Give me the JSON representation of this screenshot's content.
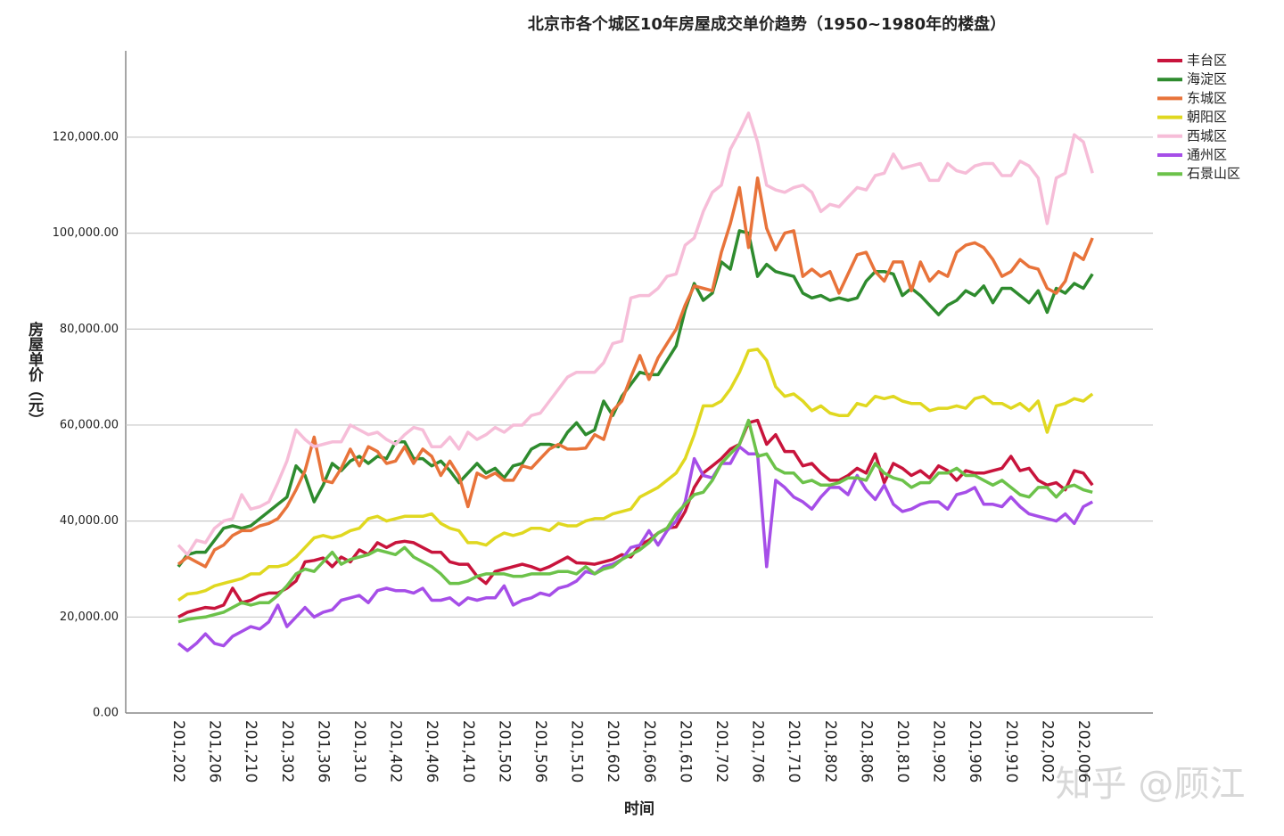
{
  "chart_data": {
    "type": "line",
    "title": "北京市各个城区10年房屋成交单价趋势（1950~1980年的楼盘）",
    "x_label": "时间",
    "y_label": "房屋单价（元）",
    "watermark": "知乎 @顾江",
    "grid": true,
    "legend": "top-right",
    "ylim": [
      0,
      138000
    ],
    "yticks": [
      {
        "value": 0,
        "label": "0.00"
      },
      {
        "value": 20000,
        "label": "20,000.00"
      },
      {
        "value": 40000,
        "label": "40,000.00"
      },
      {
        "value": 60000,
        "label": "60,000.00"
      },
      {
        "value": 80000,
        "label": "80,000.00"
      },
      {
        "value": 100000,
        "label": "100,000.00"
      },
      {
        "value": 120000,
        "label": "120,000.00"
      }
    ],
    "categories": [
      "201,202",
      null,
      null,
      null,
      "201,206",
      null,
      null,
      null,
      "201,210",
      null,
      null,
      null,
      "201,302",
      null,
      null,
      null,
      "201,306",
      null,
      null,
      null,
      "201,310",
      null,
      null,
      null,
      "201,402",
      null,
      null,
      null,
      "201,406",
      null,
      null,
      null,
      "201,410",
      null,
      null,
      null,
      "201,502",
      null,
      null,
      null,
      "201,506",
      null,
      null,
      null,
      "201,510",
      null,
      null,
      null,
      "201,602",
      null,
      null,
      null,
      "201,606",
      null,
      null,
      null,
      "201,610",
      null,
      null,
      null,
      "201,702",
      null,
      null,
      null,
      "201,706",
      null,
      null,
      null,
      "201,710",
      null,
      null,
      null,
      "201,802",
      null,
      null,
      null,
      "201,806",
      null,
      null,
      null,
      "201,810",
      null,
      null,
      null,
      "201,902",
      null,
      null,
      null,
      "201,906",
      null,
      null,
      null,
      "201,910",
      null,
      null,
      null,
      "202,002",
      null,
      null,
      null,
      "202,006",
      null
    ],
    "series": [
      {
        "name": "丰台区",
        "color": "#c8143c",
        "values": [
          20000,
          21000,
          21500,
          22000,
          21800,
          22500,
          26000,
          23000,
          23500,
          24500,
          25000,
          25000,
          26000,
          27500,
          31500,
          31800,
          32300,
          30500,
          32500,
          31500,
          34000,
          33000,
          35500,
          34500,
          35500,
          35800,
          35500,
          34500,
          33500,
          33500,
          31500,
          31000,
          31000,
          28500,
          27000,
          29500,
          30000,
          30500,
          31000,
          30500,
          29800,
          30500,
          31500,
          32500,
          31300,
          31200,
          31000,
          31500,
          32000,
          33000,
          32500,
          35000,
          36000,
          37500,
          38500,
          38800,
          42000,
          47000,
          50000,
          51500,
          53000,
          55000,
          56000,
          60500,
          61000,
          56000,
          58000,
          54500,
          54500,
          51500,
          52000,
          50000,
          48500,
          48500,
          49500,
          51000,
          50000,
          54000,
          48000,
          52000,
          51000,
          49500,
          50500,
          49000,
          51500,
          50500,
          48500,
          50500,
          50000,
          50000,
          50500,
          51000,
          53500,
          50500,
          51000,
          48500,
          47500,
          48000,
          46500,
          50500,
          50000,
          47500
        ]
      },
      {
        "name": "海淀区",
        "color": "#2e8b2e",
        "values": [
          30500,
          33000,
          33500,
          33500,
          36000,
          38500,
          39000,
          38500,
          39000,
          40500,
          42000,
          43500,
          45000,
          51500,
          49500,
          44000,
          47500,
          52000,
          50500,
          52500,
          53500,
          52000,
          53500,
          53000,
          56500,
          56500,
          53000,
          53000,
          51500,
          52500,
          50500,
          48000,
          50000,
          52000,
          50000,
          51000,
          49000,
          51500,
          52000,
          55000,
          56000,
          56000,
          55500,
          58500,
          60500,
          58000,
          59000,
          65000,
          62000,
          66000,
          68500,
          71000,
          70500,
          70500,
          73500,
          76500,
          84000,
          89500,
          86000,
          87500,
          94000,
          92500,
          100500,
          100000,
          91000,
          93500,
          92000,
          91500,
          91000,
          87500,
          86500,
          87000,
          86000,
          86500,
          86000,
          86500,
          90000,
          92000,
          92000,
          91500,
          87000,
          88500,
          87000,
          85000,
          83000,
          85000,
          86000,
          88000,
          87000,
          89000,
          85500,
          88500,
          88500,
          87000,
          85500,
          88000,
          83500,
          88500,
          87500,
          89500,
          88500,
          91500
        ]
      },
      {
        "name": "东城区",
        "color": "#e8733a",
        "values": [
          31000,
          32500,
          31500,
          30500,
          34000,
          35000,
          37000,
          38000,
          38000,
          39000,
          39500,
          40500,
          43000,
          46500,
          50500,
          57500,
          48500,
          48000,
          51000,
          55000,
          51500,
          55500,
          54500,
          52000,
          52500,
          55500,
          52000,
          55000,
          53500,
          49500,
          52500,
          49500,
          43000,
          50000,
          49000,
          50000,
          48500,
          48500,
          51500,
          51000,
          53000,
          55000,
          56000,
          55000,
          55000,
          55200,
          58000,
          57000,
          63000,
          65000,
          70000,
          74500,
          69500,
          74000,
          77000,
          80000,
          85000,
          89000,
          88500,
          88000,
          96000,
          102000,
          109500,
          97000,
          111500,
          101000,
          96500,
          100000,
          100500,
          91000,
          92500,
          91000,
          92000,
          87500,
          91500,
          95500,
          96000,
          92000,
          90000,
          94000,
          94000,
          88000,
          94000,
          90000,
          92000,
          91000,
          96000,
          97500,
          98000,
          97000,
          94500,
          91000,
          92000,
          94500,
          93000,
          92500,
          88500,
          87500,
          90000,
          95800,
          94500,
          99000
        ]
      },
      {
        "name": "朝阳区",
        "color": "#e0d820",
        "values": [
          23500,
          24800,
          25000,
          25500,
          26500,
          27000,
          27500,
          28000,
          29000,
          29000,
          30500,
          30500,
          31000,
          32500,
          34500,
          36500,
          37000,
          36500,
          37000,
          38000,
          38500,
          40500,
          41000,
          40000,
          40500,
          41000,
          41000,
          41000,
          41500,
          39500,
          38500,
          38000,
          35500,
          35500,
          35000,
          36500,
          37500,
          37000,
          37500,
          38500,
          38500,
          38000,
          39500,
          39000,
          39000,
          40000,
          40500,
          40500,
          41500,
          42000,
          42500,
          45000,
          46000,
          47000,
          48500,
          50000,
          53000,
          58000,
          64000,
          64000,
          65000,
          67500,
          71000,
          75500,
          75800,
          73500,
          68000,
          66000,
          66500,
          65000,
          63000,
          64000,
          62500,
          62000,
          62000,
          64500,
          64000,
          66000,
          65500,
          66000,
          65000,
          64500,
          64500,
          63000,
          63500,
          63500,
          64000,
          63500,
          65500,
          66000,
          64500,
          64500,
          63500,
          64500,
          63000,
          65000,
          58500,
          64000,
          64500,
          65500,
          65000,
          66500
        ]
      },
      {
        "name": "西城区",
        "color": "#f6bdd8",
        "values": [
          35000,
          33000,
          36000,
          35500,
          38500,
          40000,
          40500,
          45500,
          42500,
          43000,
          44000,
          48000,
          52500,
          59000,
          57000,
          55500,
          56000,
          56500,
          56500,
          60000,
          59000,
          58000,
          58500,
          57000,
          56000,
          58000,
          59500,
          59000,
          55500,
          55500,
          57500,
          55000,
          58500,
          57000,
          58000,
          59500,
          58500,
          60000,
          60000,
          62000,
          62500,
          65000,
          67500,
          70000,
          71000,
          71000,
          71000,
          73000,
          77000,
          77500,
          86500,
          87000,
          87000,
          88500,
          91000,
          91500,
          97500,
          99000,
          104500,
          108500,
          110000,
          117500,
          121000,
          125000,
          119000,
          110000,
          109000,
          108500,
          109500,
          110000,
          108500,
          104500,
          106000,
          105500,
          107500,
          109500,
          109000,
          112000,
          112500,
          116500,
          113500,
          114000,
          114500,
          111000,
          111000,
          114500,
          113000,
          112500,
          114000,
          114500,
          114500,
          112000,
          112000,
          115000,
          114000,
          111500,
          102000,
          111500,
          112500,
          120500,
          119000,
          112500
        ]
      },
      {
        "name": "通州区",
        "color": "#a64ee8",
        "values": [
          14500,
          13000,
          14500,
          16500,
          14500,
          14000,
          16000,
          17000,
          18000,
          17500,
          19000,
          22500,
          18000,
          20000,
          22000,
          20000,
          21000,
          21500,
          23500,
          24000,
          24500,
          23000,
          25500,
          26000,
          25500,
          25500,
          25000,
          26000,
          23500,
          23500,
          24000,
          22500,
          24000,
          23500,
          24000,
          24000,
          26500,
          22500,
          23500,
          24000,
          25000,
          24500,
          26000,
          26500,
          27500,
          29500,
          29000,
          30500,
          31000,
          32000,
          34500,
          35000,
          38000,
          35000,
          38000,
          40000,
          44000,
          53000,
          49500,
          49000,
          52000,
          52000,
          55500,
          54000,
          54000,
          30500,
          48500,
          47000,
          45000,
          44000,
          42500,
          45000,
          47000,
          47000,
          45500,
          49500,
          46500,
          44500,
          47500,
          43500,
          42000,
          42500,
          43500,
          44000,
          44000,
          42500,
          45500,
          46000,
          47000,
          43500,
          43500,
          43000,
          45000,
          43000,
          41500,
          41000,
          40500,
          40000,
          41500,
          39500,
          43000,
          44000
        ]
      },
      {
        "name": "石景山区",
        "color": "#6cc24a",
        "values": [
          19000,
          19500,
          19800,
          20000,
          20500,
          21000,
          22000,
          23000,
          22500,
          23000,
          23000,
          24500,
          26500,
          29000,
          30000,
          29500,
          31500,
          33500,
          31000,
          32000,
          32500,
          33000,
          34000,
          33500,
          33000,
          34500,
          32500,
          31500,
          30500,
          29000,
          27000,
          27000,
          27500,
          28500,
          29000,
          29000,
          29000,
          28500,
          28500,
          29000,
          29000,
          29000,
          29500,
          29500,
          29000,
          30500,
          29000,
          30000,
          30500,
          32000,
          33000,
          34000,
          35500,
          37500,
          38500,
          41500,
          43500,
          45500,
          46000,
          48500,
          52000,
          54000,
          56000,
          61000,
          53500,
          54000,
          51000,
          50000,
          50000,
          48000,
          48500,
          47500,
          47500,
          48000,
          49000,
          49000,
          48500,
          52000,
          50000,
          49000,
          48500,
          47000,
          48000,
          48000,
          50000,
          50000,
          51000,
          49500,
          49500,
          48500,
          47500,
          48500,
          47000,
          45500,
          45000,
          47000,
          47000,
          45000,
          47000,
          47500,
          46500,
          46000
        ]
      }
    ]
  }
}
